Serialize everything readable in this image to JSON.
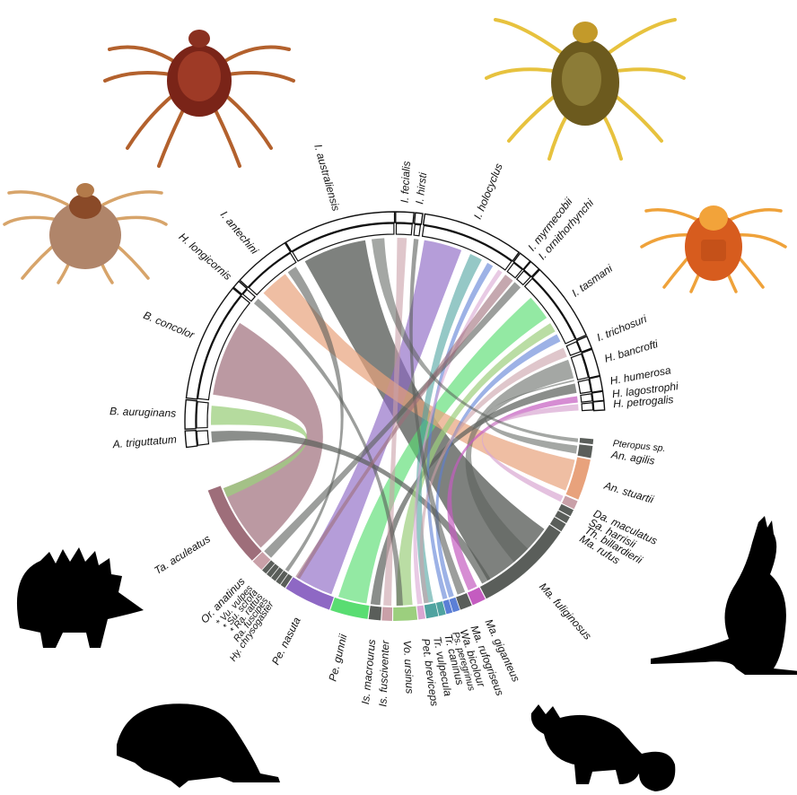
{
  "ticks": [
    {
      "name": "I. australiensis"
    },
    {
      "name": "I. fecialis"
    },
    {
      "name": "I. hirsti"
    },
    {
      "name": "I. holocyclus"
    },
    {
      "name": "I. myrmecobii"
    },
    {
      "name": "I. ornithorhynchi"
    },
    {
      "name": "I. tasmani"
    },
    {
      "name": "I. trichosuri"
    },
    {
      "name": "H. bancrofti"
    },
    {
      "name": "H. humerosa"
    },
    {
      "name": "H. lagostrophi"
    },
    {
      "name": "H. petrogalis"
    },
    {
      "name": "A. triguttatum"
    },
    {
      "name": "B. auruginans"
    },
    {
      "name": "B. concolor"
    },
    {
      "name": "H. longicornis"
    },
    {
      "name": "I. antechini"
    }
  ],
  "hosts": [
    {
      "name": "Pteropus sp."
    },
    {
      "name": "An. agilis"
    },
    {
      "name": "An. stuartii"
    },
    {
      "name": "Da. maculatus"
    },
    {
      "name": "Sa. harrisii"
    },
    {
      "name": "Th. billardierii"
    },
    {
      "name": "Ma. rufus"
    },
    {
      "name": "Ma. fuliginosus"
    },
    {
      "name": "Ma. giganteus"
    },
    {
      "name": "Ma. rufogriseus"
    },
    {
      "name": "Wa. bicolour"
    },
    {
      "name": "Ps. peregrinus"
    },
    {
      "name": "Tr. caninus"
    },
    {
      "name": "Tr. vulpecula"
    },
    {
      "name": "Pet. breviceps"
    },
    {
      "name": "Vo. ursinus"
    },
    {
      "name": "Is. fusciventer"
    },
    {
      "name": "Is. macrourus"
    },
    {
      "name": "Pe. gunnii"
    },
    {
      "name": "Pe. nasuta"
    },
    {
      "name": "Hy. chrysogaster"
    },
    {
      "name": "Ra. fuscipes"
    },
    {
      "name": "* Ra. rattus"
    },
    {
      "name": "* Su. scrofa"
    },
    {
      "name": "* Vu. vulpes"
    },
    {
      "name": "Or. anatinus"
    },
    {
      "name": "Ta. aculeatus"
    }
  ],
  "colors": {
    "gray": "#5a5e5a",
    "purple": "#8e68c4",
    "green": "#59dd72",
    "salmon": "#e8a27c",
    "mauve": "#9e6e7a",
    "pink": "#d9a6d2",
    "magenta": "#c45cc0",
    "blue": "#5b7fd6",
    "teal": "#4fa3a0",
    "sage": "#9ccf7e",
    "light_mauve": "#c9a0a8"
  },
  "icons": {
    "tick_top_left": "brown-tick-icon",
    "tick_top_right": "yellow-tick-icon",
    "tick_left": "tan-tick-icon",
    "tick_right": "orange-tick-icon",
    "echidna": "echidna-silhouette-icon",
    "bandicoot": "bandicoot-silhouette-icon",
    "possum": "possum-silhouette-icon",
    "kangaroo": "kangaroo-silhouette-icon"
  }
}
